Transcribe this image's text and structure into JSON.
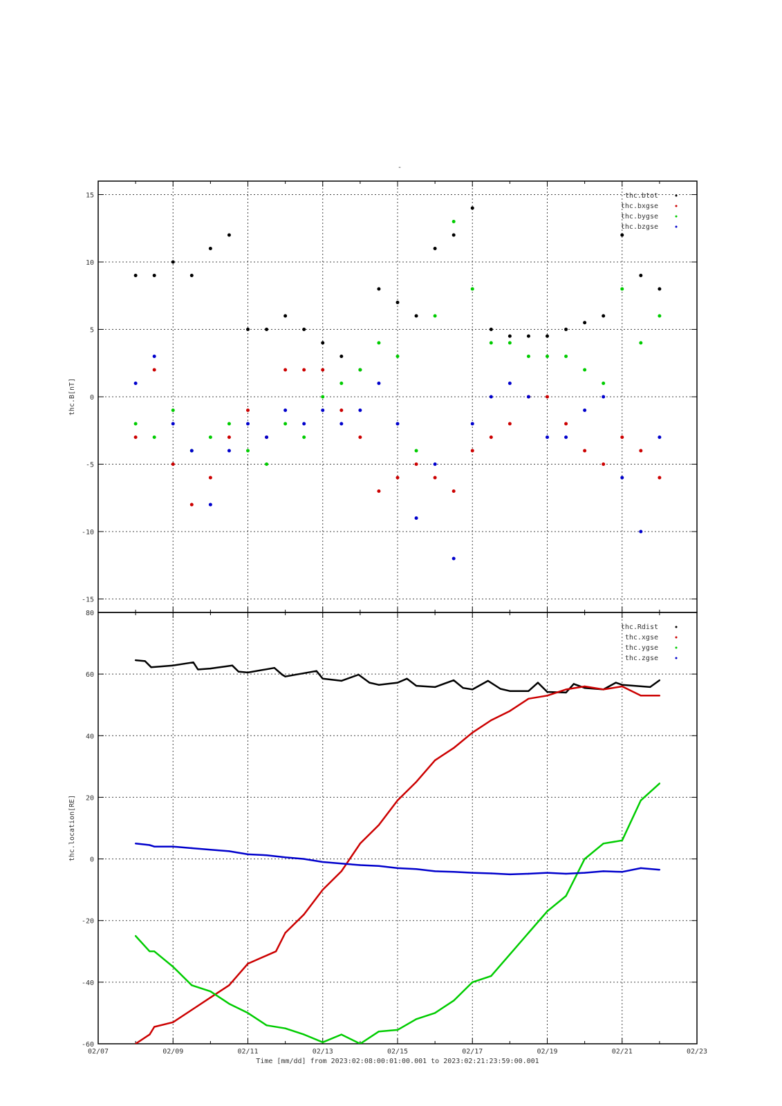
{
  "page_title": "-",
  "chart_data": [
    {
      "type": "scatter",
      "ylabel": "thc.B[nT]",
      "ylim": [
        -16,
        16
      ],
      "yticks": [
        -15,
        -10,
        -5,
        0,
        5,
        10,
        15
      ],
      "xlim": [
        "2023-02-07",
        "2023-02-23"
      ],
      "grid": true,
      "legend_position": "top-right",
      "series": [
        {
          "name": "thc.btot",
          "color": "#000000",
          "x": [
            "2023-02-08",
            "2023-02-08T12",
            "2023-02-09",
            "2023-02-09T12",
            "2023-02-10",
            "2023-02-10T12",
            "2023-02-11",
            "2023-02-11T12",
            "2023-02-12",
            "2023-02-12T12",
            "2023-02-13",
            "2023-02-13T12",
            "2023-02-14",
            "2023-02-14T12",
            "2023-02-15",
            "2023-02-15T12",
            "2023-02-16",
            "2023-02-16T12",
            "2023-02-17",
            "2023-02-17T12",
            "2023-02-18",
            "2023-02-18T12",
            "2023-02-19",
            "2023-02-19T12",
            "2023-02-20",
            "2023-02-20T12",
            "2023-02-21",
            "2023-02-21T12",
            "2023-02-22"
          ],
          "y": [
            9,
            9,
            10,
            9,
            11,
            12,
            5,
            5,
            6,
            5,
            4,
            3,
            2,
            8,
            7,
            6,
            11,
            12,
            14,
            5,
            4.5,
            4.5,
            4.5,
            5,
            5.5,
            6,
            12,
            9,
            8
          ]
        },
        {
          "name": "thc.bxgse",
          "color": "#cc0000",
          "x": [
            "2023-02-08",
            "2023-02-08T12",
            "2023-02-09",
            "2023-02-09T12",
            "2023-02-10",
            "2023-02-10T12",
            "2023-02-11",
            "2023-02-11T12",
            "2023-02-12",
            "2023-02-12T12",
            "2023-02-13",
            "2023-02-13T12",
            "2023-02-14",
            "2023-02-14T12",
            "2023-02-15",
            "2023-02-15T12",
            "2023-02-16",
            "2023-02-16T12",
            "2023-02-17",
            "2023-02-17T12",
            "2023-02-18",
            "2023-02-18T12",
            "2023-02-19",
            "2023-02-19T12",
            "2023-02-20",
            "2023-02-20T12",
            "2023-02-21",
            "2023-02-21T12",
            "2023-02-22"
          ],
          "y": [
            -3,
            2,
            -5,
            -8,
            -6,
            -3,
            -1,
            -3,
            2,
            2,
            2,
            -1,
            -3,
            -7,
            -6,
            -5,
            -6,
            -7,
            -4,
            -3,
            -2,
            0,
            0,
            -2,
            -4,
            -5,
            -3,
            -4,
            -6
          ]
        },
        {
          "name": "thc.bygse",
          "color": "#00cc00",
          "x": [
            "2023-02-08",
            "2023-02-08T12",
            "2023-02-09",
            "2023-02-09T12",
            "2023-02-10",
            "2023-02-10T12",
            "2023-02-11",
            "2023-02-11T12",
            "2023-02-12",
            "2023-02-12T12",
            "2023-02-13",
            "2023-02-13T12",
            "2023-02-14",
            "2023-02-14T12",
            "2023-02-15",
            "2023-02-15T12",
            "2023-02-16",
            "2023-02-16T12",
            "2023-02-17",
            "2023-02-17T12",
            "2023-02-18",
            "2023-02-18T12",
            "2023-02-19",
            "2023-02-19T12",
            "2023-02-20",
            "2023-02-20T12",
            "2023-02-21",
            "2023-02-21T12",
            "2023-02-22"
          ],
          "y": [
            -2,
            -3,
            -1,
            -4,
            -3,
            -2,
            -4,
            -5,
            -2,
            -3,
            0,
            1,
            2,
            4,
            3,
            -4,
            6,
            13,
            8,
            4,
            4,
            3,
            3,
            3,
            2,
            1,
            8,
            4,
            6
          ]
        },
        {
          "name": "thc.bzgse",
          "color": "#0000cc",
          "x": [
            "2023-02-08",
            "2023-02-08T12",
            "2023-02-09",
            "2023-02-09T12",
            "2023-02-10",
            "2023-02-10T12",
            "2023-02-11",
            "2023-02-11T12",
            "2023-02-12",
            "2023-02-12T12",
            "2023-02-13",
            "2023-02-13T12",
            "2023-02-14",
            "2023-02-14T12",
            "2023-02-15",
            "2023-02-15T12",
            "2023-02-16",
            "2023-02-16T12",
            "2023-02-17",
            "2023-02-17T12",
            "2023-02-18",
            "2023-02-18T12",
            "2023-02-19",
            "2023-02-19T12",
            "2023-02-20",
            "2023-02-20T12",
            "2023-02-21",
            "2023-02-21T12",
            "2023-02-22"
          ],
          "y": [
            1,
            3,
            -2,
            -4,
            -8,
            -4,
            -2,
            -3,
            -1,
            -2,
            -1,
            -2,
            -1,
            1,
            -2,
            -9,
            -5,
            -12,
            -2,
            0,
            1,
            0,
            -3,
            -3,
            -1,
            0,
            -6,
            -10,
            -3
          ]
        }
      ]
    },
    {
      "type": "line",
      "ylabel": "thc.location[RE]",
      "xlabel": "Time [mm/dd]  from 2023:02:08:00:01:00.001  to  2023:02:21:23:59:00.001",
      "ylim": [
        -60,
        80
      ],
      "yticks": [
        -60,
        -40,
        -20,
        0,
        20,
        40,
        60,
        80
      ],
      "xlim": [
        "2023-02-07",
        "2023-02-23"
      ],
      "xticks": [
        "02/07",
        "02/09",
        "02/11",
        "02/13",
        "02/15",
        "02/17",
        "02/19",
        "02/21",
        "02/23"
      ],
      "grid": true,
      "legend_position": "top-right",
      "series": [
        {
          "name": "thc.Rdist",
          "color": "#000000",
          "x": [
            "2023-02-08",
            "2023-02-08T06",
            "2023-02-08T10",
            "2023-02-09",
            "2023-02-09T13",
            "2023-02-09T16",
            "2023-02-10",
            "2023-02-10T14",
            "2023-02-10T18",
            "2023-02-11",
            "2023-02-11T17",
            "2023-02-11T22",
            "2023-02-12",
            "2023-02-12T20",
            "2023-02-13",
            "2023-02-13T12",
            "2023-02-13T23",
            "2023-02-14T06",
            "2023-02-14T12",
            "2023-02-15",
            "2023-02-15T06",
            "2023-02-15T12",
            "2023-02-16",
            "2023-02-16T12",
            "2023-02-16T18",
            "2023-02-17",
            "2023-02-17T10",
            "2023-02-17T18",
            "2023-02-18",
            "2023-02-18T12",
            "2023-02-18T18",
            "2023-02-19",
            "2023-02-19T12",
            "2023-02-19T17",
            "2023-02-20",
            "2023-02-20T12",
            "2023-02-20T20",
            "2023-02-21",
            "2023-02-21T18",
            "2023-02-22"
          ],
          "y": [
            64.5,
            64.2,
            62.2,
            62.8,
            63.8,
            61.5,
            61.8,
            62.8,
            60.8,
            60.5,
            62,
            59.8,
            59.2,
            61,
            58.5,
            57.8,
            59.8,
            57.2,
            56.5,
            57.2,
            58.5,
            56.2,
            55.8,
            58,
            55.5,
            55,
            57.8,
            55.2,
            54.5,
            54.5,
            57.2,
            54.2,
            54,
            56.8,
            55.5,
            55,
            57.2,
            56.5,
            55.8,
            58
          ]
        },
        {
          "name": "thc.xgse",
          "color": "#cc0000",
          "x": [
            "2023-02-08",
            "2023-02-08T09",
            "2023-02-08T12",
            "2023-02-09",
            "2023-02-09T12",
            "2023-02-10",
            "2023-02-10T12",
            "2023-02-11",
            "2023-02-11T18",
            "2023-02-12",
            "2023-02-12T12",
            "2023-02-13",
            "2023-02-13T12",
            "2023-02-14",
            "2023-02-14T12",
            "2023-02-15",
            "2023-02-15T12",
            "2023-02-16",
            "2023-02-16T12",
            "2023-02-17",
            "2023-02-17T12",
            "2023-02-18",
            "2023-02-18T12",
            "2023-02-19",
            "2023-02-19T12",
            "2023-02-20",
            "2023-02-20T12",
            "2023-02-21",
            "2023-02-21T12",
            "2023-02-22"
          ],
          "y": [
            -60,
            -57,
            -54.5,
            -53,
            -49,
            -45,
            -41,
            -34,
            -30,
            -24,
            -18,
            -10,
            -4,
            5,
            11,
            19,
            25,
            32,
            36,
            41,
            45,
            48,
            52,
            53,
            55,
            56,
            55,
            56,
            53,
            53
          ]
        },
        {
          "name": "thc.ygse",
          "color": "#00cc00",
          "x": [
            "2023-02-08",
            "2023-02-08T09",
            "2023-02-08T12",
            "2023-02-09",
            "2023-02-09T12",
            "2023-02-10",
            "2023-02-10T12",
            "2023-02-11",
            "2023-02-11T12",
            "2023-02-12",
            "2023-02-12T12",
            "2023-02-13",
            "2023-02-13T12",
            "2023-02-14",
            "2023-02-14T12",
            "2023-02-15",
            "2023-02-15T12",
            "2023-02-16",
            "2023-02-16T12",
            "2023-02-17",
            "2023-02-17T12",
            "2023-02-18",
            "2023-02-18T12",
            "2023-02-19",
            "2023-02-19T12",
            "2023-02-20",
            "2023-02-20T12",
            "2023-02-21",
            "2023-02-21T12",
            "2023-02-22"
          ],
          "y": [
            -25,
            -30,
            -30,
            -35,
            -41,
            -43,
            -47,
            -50,
            -54,
            -55,
            -57,
            -59.5,
            -57,
            -60,
            -56,
            -55.5,
            -52,
            -50,
            -46,
            -40,
            -38,
            -31,
            -24,
            -17,
            -12,
            0,
            5,
            6,
            19,
            24.5
          ]
        },
        {
          "name": "thc.zgse",
          "color": "#0000cc",
          "x": [
            "2023-02-08",
            "2023-02-08T09",
            "2023-02-08T12",
            "2023-02-09",
            "2023-02-09T12",
            "2023-02-10",
            "2023-02-10T12",
            "2023-02-11",
            "2023-02-11T12",
            "2023-02-12",
            "2023-02-12T12",
            "2023-02-13",
            "2023-02-13T12",
            "2023-02-14",
            "2023-02-14T12",
            "2023-02-15",
            "2023-02-15T12",
            "2023-02-16",
            "2023-02-16T12",
            "2023-02-17",
            "2023-02-17T12",
            "2023-02-18",
            "2023-02-18T12",
            "2023-02-19",
            "2023-02-19T12",
            "2023-02-20",
            "2023-02-20T12",
            "2023-02-21",
            "2023-02-21T12",
            "2023-02-22"
          ],
          "y": [
            5,
            4.5,
            4,
            4,
            3.5,
            3,
            2.5,
            1.5,
            1.2,
            0.5,
            0,
            -1,
            -1.5,
            -2,
            -2.3,
            -3,
            -3.3,
            -4,
            -4.2,
            -4.5,
            -4.7,
            -5,
            -4.8,
            -4.5,
            -4.8,
            -4.5,
            -4,
            -4.2,
            -3,
            -3.5
          ]
        }
      ]
    }
  ]
}
